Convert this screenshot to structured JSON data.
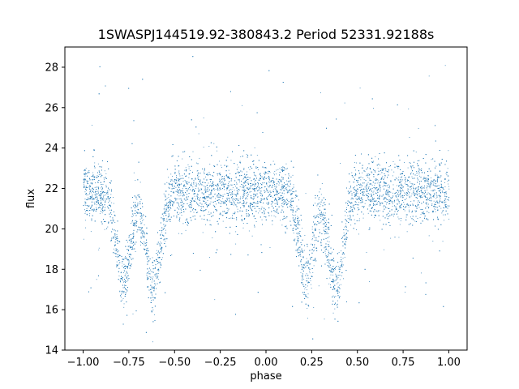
{
  "chart_data": {
    "type": "scatter",
    "title": "1SWASPJ144519.92-380843.2 Period 52331.92188s",
    "xlabel": "phase",
    "ylabel": "flux",
    "xlim": [
      -1.1,
      1.1
    ],
    "ylim": [
      14.0,
      29.0
    ],
    "xticks": [
      -1.0,
      -0.75,
      -0.5,
      -0.25,
      0.0,
      0.25,
      0.5,
      0.75,
      1.0
    ],
    "xtick_labels": [
      "−1.00",
      "−0.75",
      "−0.50",
      "−0.25",
      "0.00",
      "0.25",
      "0.50",
      "0.75",
      "1.00"
    ],
    "yticks": [
      14,
      16,
      18,
      20,
      22,
      24,
      26,
      28
    ],
    "ytick_labels": [
      "14",
      "16",
      "18",
      "20",
      "22",
      "24",
      "26",
      "28"
    ],
    "grid": false,
    "legend": "none",
    "marker_color": "#1f77b4",
    "series": [
      {
        "phase_range": [
          -1.0,
          1.0
        ],
        "baseline_flux": 21.8,
        "typical_spread": [
          20.0,
          24.0
        ],
        "minima": [
          {
            "phase": -0.78,
            "flux": 17.5
          },
          {
            "phase": -0.62,
            "flux": 17.2
          },
          {
            "phase": 0.22,
            "flux": 17.5
          },
          {
            "phase": 0.38,
            "flux": 17.2
          }
        ],
        "sample_points": [
          [
            -1.0,
            21.6
          ],
          [
            -0.95,
            21.9
          ],
          [
            -0.9,
            21.5
          ],
          [
            -0.85,
            20.4
          ],
          [
            -0.8,
            18.2
          ],
          [
            -0.78,
            17.5
          ],
          [
            -0.75,
            18.4
          ],
          [
            -0.7,
            20.2
          ],
          [
            -0.65,
            18.6
          ],
          [
            -0.62,
            17.2
          ],
          [
            -0.58,
            18.4
          ],
          [
            -0.55,
            20.5
          ],
          [
            -0.5,
            21.6
          ],
          [
            -0.4,
            21.9
          ],
          [
            -0.3,
            22.0
          ],
          [
            -0.2,
            21.8
          ],
          [
            -0.1,
            21.7
          ],
          [
            0.0,
            21.8
          ],
          [
            0.1,
            21.6
          ],
          [
            0.15,
            20.4
          ],
          [
            0.2,
            18.2
          ],
          [
            0.22,
            17.5
          ],
          [
            0.25,
            18.4
          ],
          [
            0.3,
            20.2
          ],
          [
            0.35,
            18.6
          ],
          [
            0.38,
            17.2
          ],
          [
            0.42,
            18.4
          ],
          [
            0.45,
            20.5
          ],
          [
            0.5,
            21.6
          ],
          [
            0.6,
            21.9
          ],
          [
            0.7,
            22.0
          ],
          [
            0.8,
            21.8
          ],
          [
            0.9,
            21.7
          ],
          [
            1.0,
            21.6
          ]
        ]
      }
    ]
  }
}
